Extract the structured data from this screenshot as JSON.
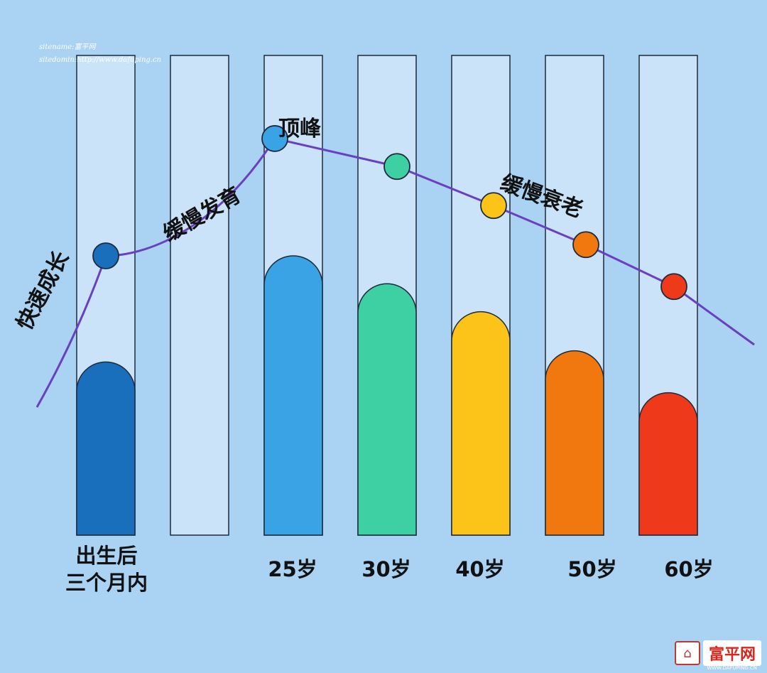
{
  "meta": {
    "sitename": "sitename:富平网",
    "sitedomain": "sitedomin:http://www.dafuping.cn"
  },
  "annotations": {
    "fast_growth": "快速成长",
    "slow_dev": "缓慢发育",
    "peak": "顶峰",
    "slow_aging": "缓慢衰老"
  },
  "categories": {
    "c0_line1": "出生后",
    "c0_line2": "三个月内",
    "c2": "25岁",
    "c3": "30岁",
    "c4": "40岁",
    "c5": "50岁",
    "c6": "60岁"
  },
  "logo": {
    "text": "富平网",
    "sub": "WWW.DAFUPING.CN"
  },
  "colors": {
    "background": "#a9d2f3",
    "column_bg": "#cbe3f8",
    "curve": "#6a3fc1",
    "bars": [
      "#1a6fbd",
      null,
      "#3aa3e6",
      "#3ecfa2",
      "#fcc418",
      "#f1780f",
      "#ee3a1b"
    ]
  },
  "chart_data": {
    "type": "bar",
    "categories": [
      "出生后三个月内",
      "",
      "25岁",
      "30岁",
      "40岁",
      "50岁",
      "60岁"
    ],
    "values": [
      62,
      null,
      100,
      90,
      80,
      66,
      51
    ],
    "ylim": [
      0,
      100
    ],
    "grid": false,
    "curve": {
      "markers": [
        {
          "category": "出生后三个月内",
          "value": 100,
          "color": "#1a6fbd"
        },
        {
          "category": "25岁",
          "value": 142,
          "color": "#3aa3e6"
        },
        {
          "category": "30岁",
          "value": 132,
          "color": "#3ecfa2"
        },
        {
          "category": "40岁",
          "value": 118,
          "color": "#fcc418"
        },
        {
          "category": "50岁",
          "value": 104,
          "color": "#f1780f"
        },
        {
          "category": "60岁",
          "value": 89,
          "color": "#ee3a1b"
        }
      ]
    }
  }
}
